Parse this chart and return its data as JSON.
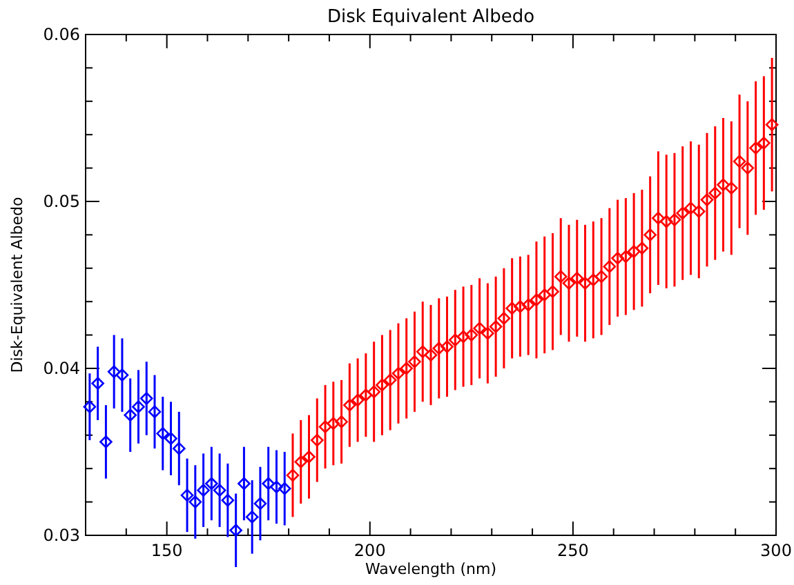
{
  "chart_data": {
    "type": "scatter",
    "title": "Disk Equivalent Albedo",
    "xlabel": "Wavelength (nm)",
    "ylabel": "Disk-Equivalent Albedo",
    "xlim": [
      130,
      300
    ],
    "ylim": [
      0.03,
      0.06
    ],
    "xticks": [
      {
        "value": 140,
        "label": null
      },
      150,
      {
        "value": 160,
        "label": null
      },
      {
        "value": 170,
        "label": null
      },
      {
        "value": 180,
        "label": null
      },
      {
        "value": 190,
        "label": null
      },
      200,
      {
        "value": 210,
        "label": null
      },
      {
        "value": 220,
        "label": null
      },
      {
        "value": 230,
        "label": null
      },
      {
        "value": 240,
        "label": null
      },
      250,
      {
        "value": 260,
        "label": null
      },
      {
        "value": 270,
        "label": null
      },
      {
        "value": 280,
        "label": null
      },
      {
        "value": 290,
        "label": null
      },
      300
    ],
    "yticks": [
      0.03,
      {
        "value": 0.032,
        "label": null
      },
      {
        "value": 0.034,
        "label": null
      },
      {
        "value": 0.036,
        "label": null
      },
      {
        "value": 0.038,
        "label": null
      },
      0.04,
      {
        "value": 0.042,
        "label": null
      },
      {
        "value": 0.044,
        "label": null
      },
      {
        "value": 0.046,
        "label": null
      },
      {
        "value": 0.048,
        "label": null
      },
      0.05,
      {
        "value": 0.052,
        "label": null
      },
      {
        "value": 0.054,
        "label": null
      },
      {
        "value": 0.056,
        "label": null
      },
      {
        "value": 0.058,
        "label": null
      },
      0.06
    ],
    "marker": "diamond",
    "series": [
      {
        "color": "#0000ff",
        "x": [
          131,
          133,
          135,
          137,
          139,
          141,
          143,
          145,
          147,
          149,
          151,
          153,
          155,
          157,
          159,
          161,
          163,
          165,
          167,
          169,
          171,
          173,
          175,
          177,
          179
        ],
        "values": [
          0.0377,
          0.0391,
          0.0356,
          0.0398,
          0.0396,
          0.0372,
          0.0377,
          0.0382,
          0.0374,
          0.0361,
          0.0358,
          0.0352,
          0.0324,
          0.032,
          0.0327,
          0.0331,
          0.0327,
          0.0321,
          0.0303,
          0.0331,
          0.0311,
          0.0319,
          0.0331,
          0.0329,
          0.0328
        ],
        "errors": [
          0.002,
          0.0022,
          0.0022,
          0.0022,
          0.0022,
          0.0022,
          0.0022,
          0.0022,
          0.0022,
          0.0022,
          0.0022,
          0.0022,
          0.0022,
          0.0022,
          0.0022,
          0.0022,
          0.0022,
          0.0022,
          0.0022,
          0.0022,
          0.0022,
          0.0022,
          0.0022,
          0.0022,
          0.0022
        ]
      },
      {
        "color": "#ff0000",
        "x": [
          181,
          183,
          185,
          187,
          189,
          191,
          193,
          195,
          197,
          199,
          201,
          203,
          205,
          207,
          209,
          211,
          213,
          215,
          217,
          219,
          221,
          223,
          225,
          227,
          229,
          231,
          233,
          235,
          237,
          239,
          241,
          243,
          245,
          247,
          249,
          251,
          253,
          255,
          257,
          259,
          261,
          263,
          265,
          267,
          269,
          271,
          273,
          275,
          277,
          279,
          281,
          283,
          285,
          287,
          289,
          291,
          293,
          295,
          297,
          299
        ],
        "values": [
          0.0336,
          0.0344,
          0.0347,
          0.0357,
          0.0365,
          0.0367,
          0.0368,
          0.0378,
          0.0381,
          0.0384,
          0.0386,
          0.039,
          0.0393,
          0.0397,
          0.04,
          0.0404,
          0.041,
          0.0408,
          0.0412,
          0.0413,
          0.0417,
          0.0419,
          0.042,
          0.0424,
          0.0421,
          0.0425,
          0.043,
          0.0436,
          0.0437,
          0.0438,
          0.0441,
          0.0444,
          0.0446,
          0.0455,
          0.0451,
          0.0454,
          0.0451,
          0.0453,
          0.0455,
          0.0461,
          0.0466,
          0.0467,
          0.047,
          0.0472,
          0.048,
          0.049,
          0.0488,
          0.0489,
          0.0493,
          0.0496,
          0.0494,
          0.0501,
          0.0505,
          0.051,
          0.0508,
          0.0524,
          0.052,
          0.0532,
          0.0535,
          0.0546
        ],
        "errors": [
          0.0025,
          0.0025,
          0.0025,
          0.0025,
          0.0025,
          0.0025,
          0.0025,
          0.0025,
          0.0025,
          0.0025,
          0.003,
          0.003,
          0.003,
          0.003,
          0.003,
          0.003,
          0.003,
          0.003,
          0.003,
          0.003,
          0.003,
          0.003,
          0.003,
          0.003,
          0.003,
          0.003,
          0.003,
          0.003,
          0.003,
          0.003,
          0.0035,
          0.0035,
          0.0035,
          0.0035,
          0.0035,
          0.0035,
          0.0035,
          0.0035,
          0.0035,
          0.0035,
          0.0035,
          0.0035,
          0.0035,
          0.0035,
          0.0035,
          0.004,
          0.004,
          0.004,
          0.004,
          0.004,
          0.004,
          0.004,
          0.004,
          0.004,
          0.004,
          0.004,
          0.004,
          0.004,
          0.004,
          0.004
        ]
      }
    ]
  }
}
